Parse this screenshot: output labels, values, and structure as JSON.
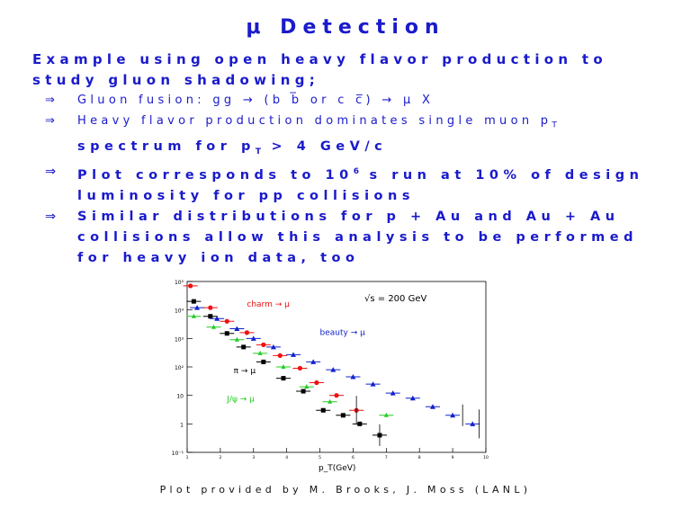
{
  "slide": {
    "title": "μ Detection",
    "intro_line1": "Example using open heavy flavor production to",
    "intro_line2": "study gluon shadowing;",
    "bullets": [
      {
        "arrow": "⇒",
        "text": "Gluon fusion: gg → (b b̅ or c c̅) → μ X"
      },
      {
        "arrow": "⇒",
        "line1": "Heavy flavor production dominates single muon p",
        "line1_sub": "T",
        "line2": "spectrum for p",
        "line2_sub": "T",
        "line2_tail": " > 4 GeV/c"
      },
      {
        "arrow": "⇒",
        "line1_pre": "Plot corresponds to 10",
        "line1_sup": "6",
        "line1_post": " s run at 10% of design",
        "line2": "luminosity for pp collisions"
      },
      {
        "arrow": "⇒",
        "line1": "Similar distributions for p + Au and Au + Au",
        "line2": "collisions allow this analysis to be performed",
        "line3": "for heavy ion data, too"
      }
    ],
    "credit": "Plot provided by M. Brooks, J. Moss (LANL)"
  },
  "chart_data": {
    "type": "scatter",
    "title": "",
    "xlabel": "p_T(GeV)",
    "ylabel": "",
    "ylog": true,
    "ylim": [
      0.1,
      100000
    ],
    "xlim": [
      1,
      10
    ],
    "xticks": [
      "1",
      "2",
      "3",
      "4",
      "5",
      "6",
      "7",
      "8",
      "9",
      "10"
    ],
    "ytick_labels": [
      "10⁻¹",
      "1",
      "10",
      "10²",
      "10³",
      "10⁴",
      "10⁵"
    ],
    "energy_label": "√s = 200 GeV",
    "annotations": [
      "charm → μ",
      "beauty → μ",
      "π → μ",
      "J/ψ → μ"
    ],
    "colors": {
      "charm": "#ee1111",
      "beauty": "#1122cc",
      "pion": "#000000",
      "jpsi": "#22cc22"
    },
    "series": [
      {
        "name": "charm → μ",
        "x": [
          1.1,
          1.7,
          2.2,
          2.8,
          3.3,
          3.8,
          4.4,
          4.9,
          5.5,
          6.1
        ],
        "y": [
          70000,
          12000,
          4000,
          1600,
          600,
          250,
          90,
          28,
          10,
          3
        ]
      },
      {
        "name": "beauty → μ",
        "x": [
          1.3,
          1.9,
          2.5,
          3.0,
          3.6,
          4.2,
          4.8,
          5.4,
          6.0,
          6.6,
          7.2,
          7.8,
          8.4,
          9.0,
          9.6
        ],
        "y": [
          12000,
          5000,
          2200,
          1000,
          500,
          270,
          150,
          80,
          45,
          25,
          12,
          8,
          4,
          2,
          1
        ]
      },
      {
        "name": "π → μ",
        "x": [
          1.2,
          1.7,
          2.2,
          2.7,
          3.3,
          3.9,
          4.5,
          5.1,
          5.7,
          6.2,
          6.8
        ],
        "y": [
          20000,
          6000,
          1500,
          500,
          150,
          40,
          14,
          3,
          2,
          1,
          0.4
        ]
      },
      {
        "name": "J/ψ → μ",
        "x": [
          1.2,
          1.8,
          2.5,
          3.2,
          3.9,
          4.6,
          5.3,
          7.0
        ],
        "y": [
          6000,
          2500,
          900,
          300,
          100,
          20,
          6,
          2
        ]
      }
    ]
  }
}
